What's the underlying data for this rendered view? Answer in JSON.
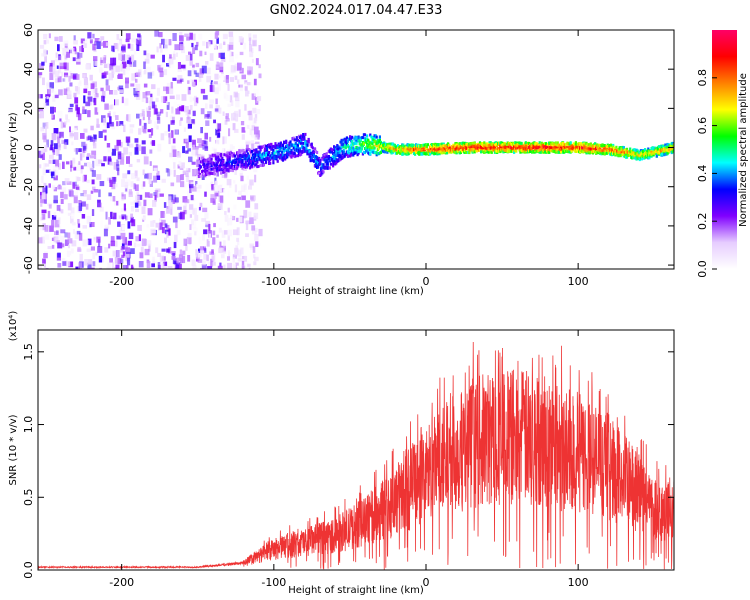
{
  "chart_data": [
    {
      "type": "heatmap",
      "title": "GN02.2024.017.04.47.E33",
      "xlabel": "Height of straight line (km)",
      "ylabel": "Frequency (Hz)",
      "xlim": [
        -255,
        163
      ],
      "ylim": [
        -62,
        60
      ],
      "xticks": [
        -200,
        -100,
        0,
        100
      ],
      "yticks": [
        60,
        40,
        20,
        0,
        -20,
        -40,
        -60
      ],
      "colorbar": {
        "label": "Normalized spectral amplitude",
        "range": [
          0,
          1
        ],
        "ticks": [
          0.0,
          0.2,
          0.4,
          0.6,
          0.8
        ],
        "colormap": [
          "#ffffff",
          "#e6ccff",
          "#8000ff",
          "#0000ff",
          "#00ffff",
          "#00ff00",
          "#ffff00",
          "#ff8000",
          "#ff0000",
          "#ff0066"
        ]
      },
      "noise_region": {
        "x_range": [
          -255,
          -120
        ],
        "amplitude": 0.15
      },
      "signal_track": [
        {
          "x": -150,
          "y": -10,
          "amp": 0.25
        },
        {
          "x": -120,
          "y": -6,
          "amp": 0.35
        },
        {
          "x": -100,
          "y": -3,
          "amp": 0.4
        },
        {
          "x": -80,
          "y": 2,
          "amp": 0.4
        },
        {
          "x": -70,
          "y": -10,
          "amp": 0.35
        },
        {
          "x": -55,
          "y": 0,
          "amp": 0.45
        },
        {
          "x": -40,
          "y": 2,
          "amp": 0.6
        },
        {
          "x": -20,
          "y": -1,
          "amp": 0.75
        },
        {
          "x": 0,
          "y": -1,
          "amp": 0.85
        },
        {
          "x": 30,
          "y": 0,
          "amp": 0.9
        },
        {
          "x": 60,
          "y": 0,
          "amp": 0.92
        },
        {
          "x": 100,
          "y": 0,
          "amp": 0.9
        },
        {
          "x": 120,
          "y": -1,
          "amp": 0.85
        },
        {
          "x": 140,
          "y": -4,
          "amp": 0.7
        },
        {
          "x": 163,
          "y": 0,
          "amp": 0.75
        }
      ]
    },
    {
      "type": "line",
      "xlabel": "Height of straight line (km)",
      "ylabel": "SNR (10 * v/v)",
      "y_multiplier": "(x10⁴)",
      "xlim": [
        -255,
        163
      ],
      "ylim": [
        0,
        1.65
      ],
      "xticks": [
        -200,
        -100,
        0,
        100
      ],
      "yticks": [
        0.0,
        0.5,
        1.0,
        1.5
      ],
      "series": [
        {
          "color": "#ee3333",
          "envelope": [
            {
              "x": -255,
              "y": 0.02
            },
            {
              "x": -150,
              "y": 0.02
            },
            {
              "x": -120,
              "y": 0.05
            },
            {
              "x": -100,
              "y": 0.15
            },
            {
              "x": -80,
              "y": 0.2
            },
            {
              "x": -60,
              "y": 0.25
            },
            {
              "x": -40,
              "y": 0.35
            },
            {
              "x": -20,
              "y": 0.5
            },
            {
              "x": 0,
              "y": 0.7
            },
            {
              "x": 20,
              "y": 0.85
            },
            {
              "x": 40,
              "y": 0.95
            },
            {
              "x": 60,
              "y": 0.97
            },
            {
              "x": 80,
              "y": 0.92
            },
            {
              "x": 100,
              "y": 0.85
            },
            {
              "x": 120,
              "y": 0.75
            },
            {
              "x": 140,
              "y": 0.55
            },
            {
              "x": 150,
              "y": 0.45
            },
            {
              "x": 163,
              "y": 0.42
            }
          ]
        }
      ]
    }
  ]
}
